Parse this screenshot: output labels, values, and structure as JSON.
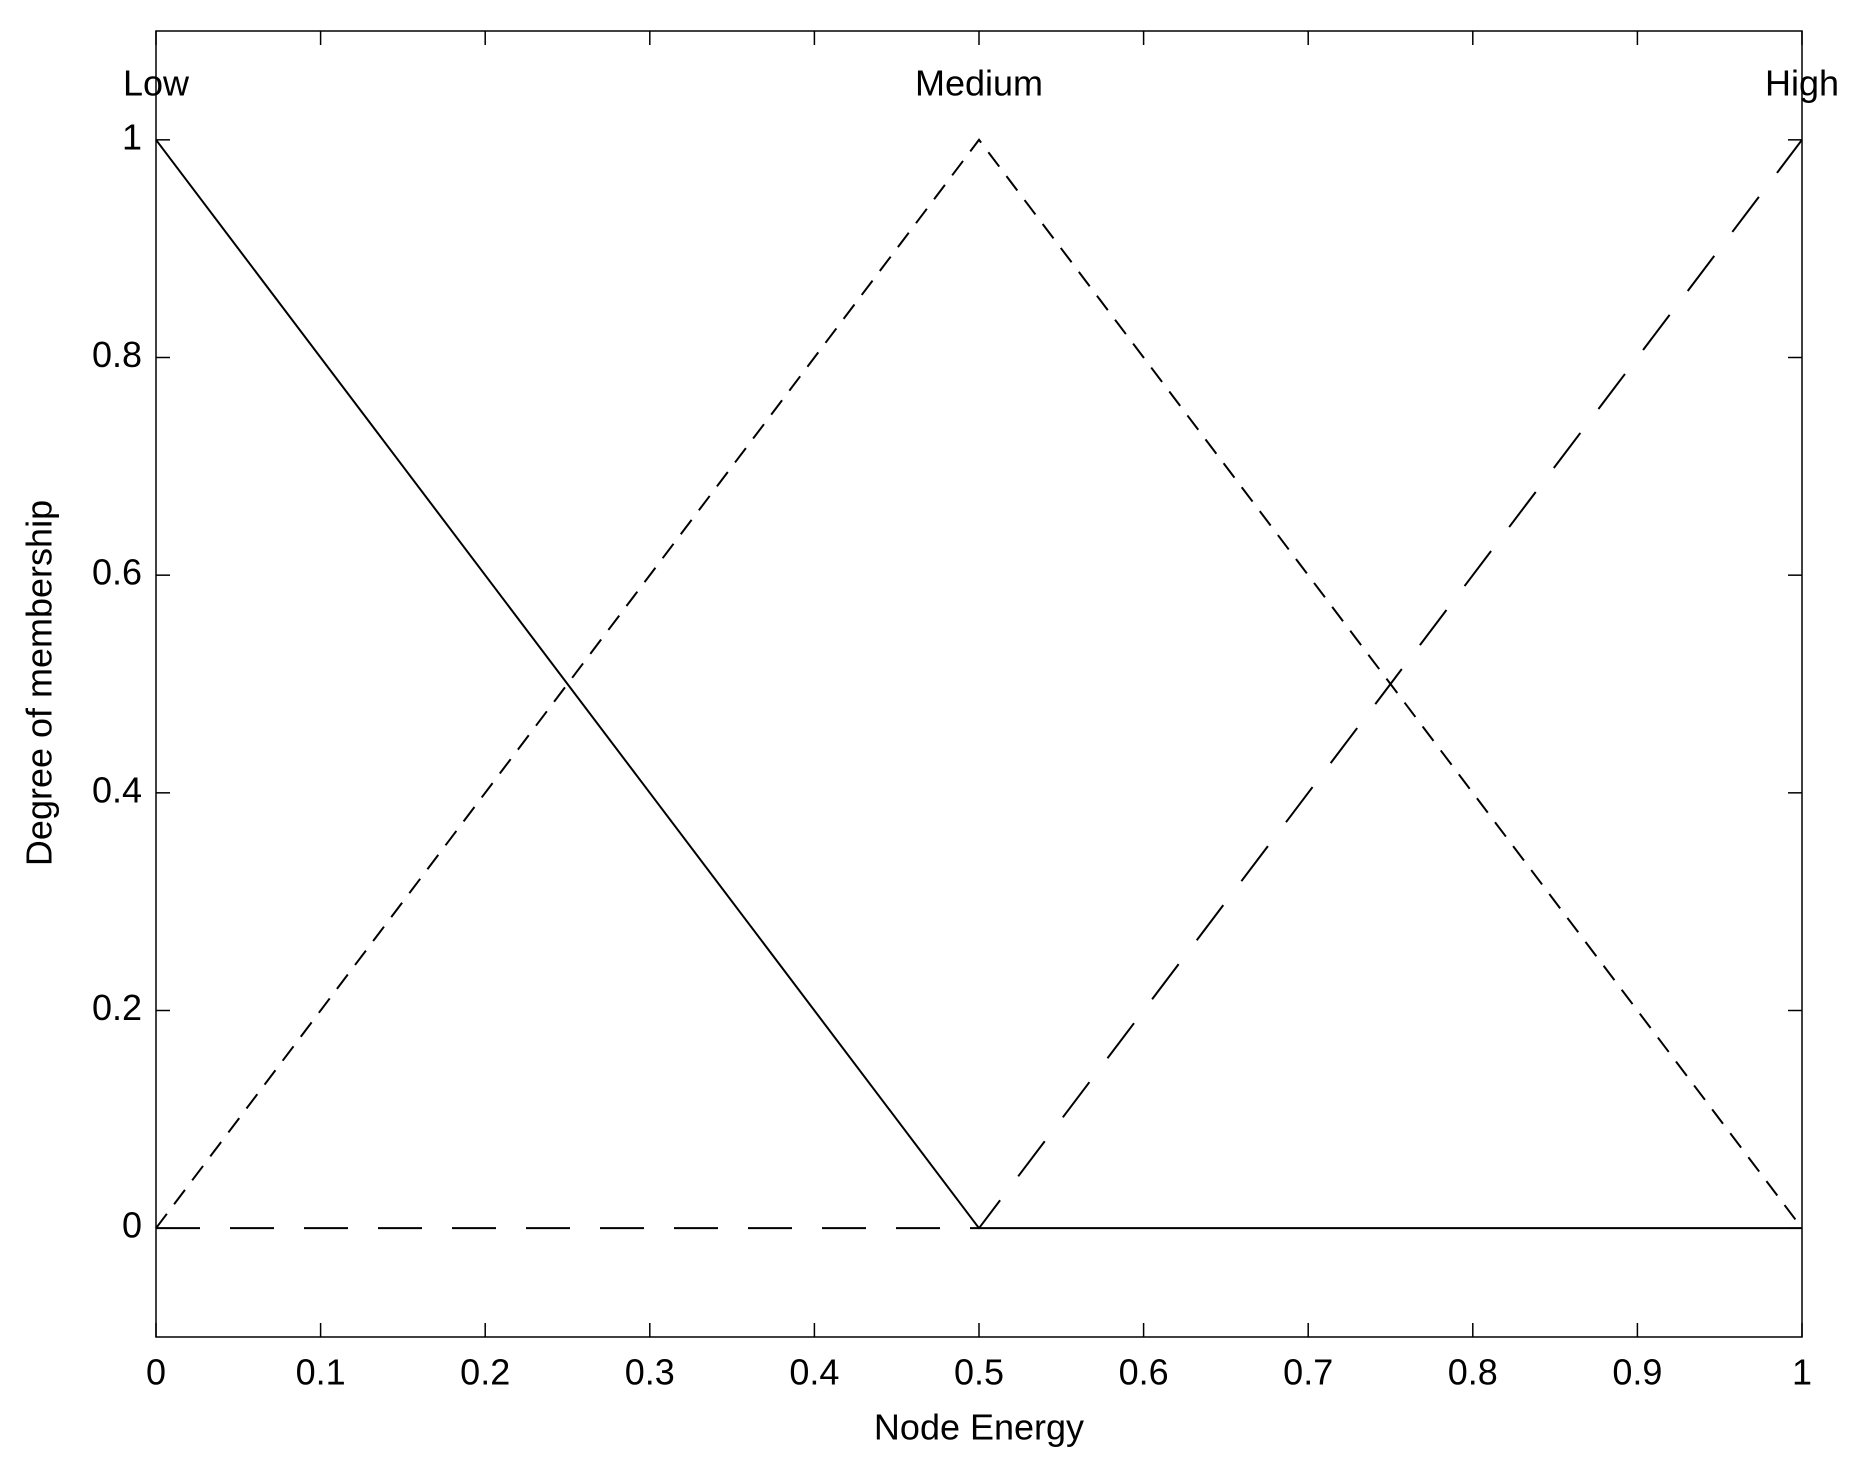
{
  "chart_data": {
    "type": "line",
    "x_label": "Node Energy",
    "y_label": "Degree of membership",
    "x": [
      0,
      0.5,
      1
    ],
    "series": [
      {
        "name": "Low",
        "color": "#000000",
        "dash": "solid",
        "values": [
          1,
          0,
          0
        ]
      },
      {
        "name": "Medium",
        "color": "#000000",
        "dash": "dashed",
        "values": [
          0,
          1,
          0
        ]
      },
      {
        "name": "High",
        "color": "#000000",
        "dash": "longdash",
        "values": [
          0,
          0,
          1
        ]
      }
    ],
    "xlim": [
      0,
      1
    ],
    "ylim": [
      -0.1,
      1.1
    ],
    "xticks": [
      0,
      0.1,
      0.2,
      0.3,
      0.4,
      0.5,
      0.6,
      0.7,
      0.8,
      0.9,
      1
    ],
    "yticks": [
      0,
      0.2,
      0.4,
      0.6,
      0.8,
      1
    ],
    "grid": false
  }
}
